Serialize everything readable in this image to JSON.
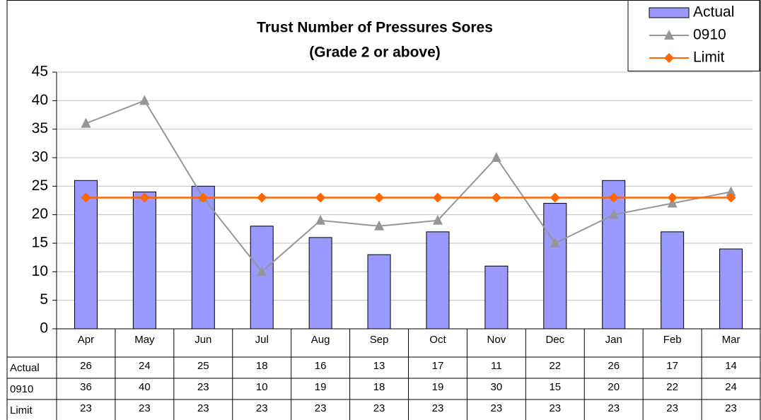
{
  "chart_data": {
    "type": "bar",
    "title": "Trust Number of Pressures Sores",
    "subtitle": "(Grade 2 or above)",
    "categories": [
      "Apr",
      "May",
      "Jun",
      "Jul",
      "Aug",
      "Sep",
      "Oct",
      "Nov",
      "Dec",
      "Jan",
      "Feb",
      "Mar"
    ],
    "series": [
      {
        "name": "Actual",
        "type": "bar",
        "color": "#9999ff",
        "values": [
          26,
          24,
          25,
          18,
          16,
          13,
          17,
          11,
          22,
          26,
          17,
          14
        ]
      },
      {
        "name": "0910",
        "type": "line",
        "color": "#969696",
        "values": [
          36,
          40,
          23,
          10,
          19,
          18,
          19,
          30,
          15,
          20,
          22,
          24
        ]
      },
      {
        "name": "Limit",
        "type": "line",
        "color": "#ff6600",
        "values": [
          23,
          23,
          23,
          23,
          23,
          23,
          23,
          23,
          23,
          23,
          23,
          23
        ]
      }
    ],
    "ylim": [
      0,
      45
    ],
    "yticks": [
      0,
      5,
      10,
      15,
      20,
      25,
      30,
      35,
      40,
      45
    ],
    "grid": true,
    "legend": "top-right",
    "data_table": true
  }
}
